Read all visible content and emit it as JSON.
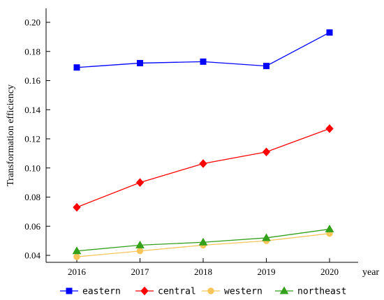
{
  "chart_data": {
    "type": "line",
    "categories": [
      "2016",
      "2017",
      "2018",
      "2019",
      "2020"
    ],
    "ylabel": "Transformation efficiency",
    "xlabel": "year",
    "ylim": [
      0.035,
      0.21
    ],
    "yticks": [
      "0.04",
      "0.06",
      "0.08",
      "0.10",
      "0.12",
      "0.14",
      "0.16",
      "0.18",
      "0.20"
    ],
    "grid": false,
    "legend_position": "bottom",
    "series": [
      {
        "name": "eastern",
        "values": [
          0.169,
          0.172,
          0.173,
          0.17,
          0.193
        ],
        "color": "#0000ff",
        "marker": "square"
      },
      {
        "name": "central",
        "values": [
          0.073,
          0.09,
          0.103,
          0.111,
          0.127
        ],
        "color": "#ff0000",
        "marker": "diamond"
      },
      {
        "name": "western",
        "values": [
          0.039,
          0.043,
          0.047,
          0.05,
          0.055
        ],
        "color": "#f8c55a",
        "marker": "circle"
      },
      {
        "name": "northeast",
        "values": [
          0.043,
          0.047,
          0.049,
          0.052,
          0.058
        ],
        "color": "#33a11a",
        "marker": "triangle"
      }
    ]
  }
}
